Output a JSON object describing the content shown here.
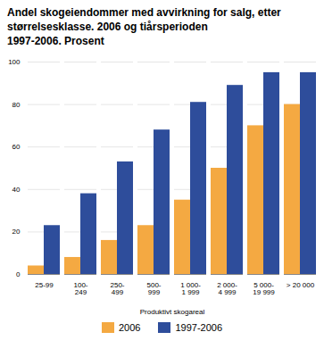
{
  "chart_data": {
    "type": "bar",
    "title": "Andel skogeiendommer med avvirkning for salg, etter\nstørrelsesklasse. 2006 og tiårsperioden\n1997-2006. Prosent",
    "xlabel": "Produktivt skogareal",
    "categories": [
      "25-99",
      "100-\n249",
      "250-\n499",
      "500-\n999",
      "1 000-\n1 999",
      "2 000-\n4 999",
      "5 000-\n19 999",
      "> 20 000"
    ],
    "series": [
      {
        "name": "2006",
        "color": "#f4a942",
        "values": [
          4,
          8,
          16,
          23,
          35,
          50,
          70,
          80
        ]
      },
      {
        "name": "1997-2006",
        "color": "#2e4d9b",
        "values": [
          23,
          38,
          53,
          68,
          81,
          89,
          95,
          95
        ]
      }
    ],
    "ylim": [
      0,
      100
    ],
    "yticks": [
      0,
      20,
      40,
      60,
      80,
      100
    ],
    "grid": true,
    "legend": "bottom"
  }
}
